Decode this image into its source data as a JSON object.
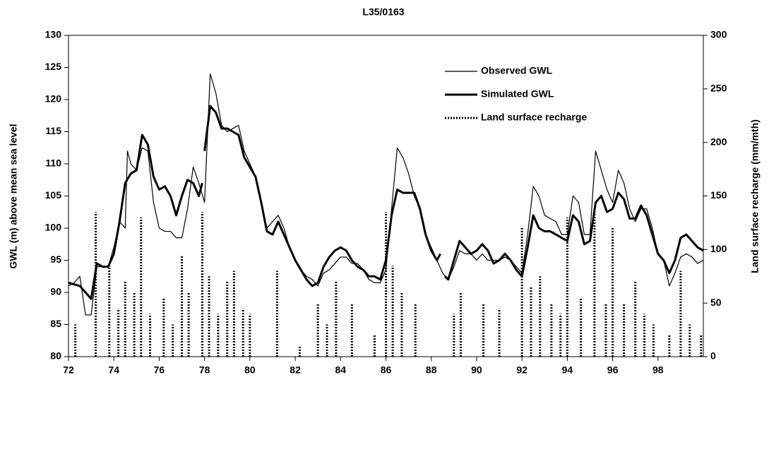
{
  "chart_data": {
    "type": "line",
    "title": "L35/0163",
    "y_label": "GWL (m) above mean sea level",
    "y2_label": "Land surface recharge (mm/mth)",
    "xlim": [
      72,
      100
    ],
    "xticks": [
      72,
      74,
      76,
      78,
      80,
      82,
      84,
      86,
      88,
      90,
      92,
      94,
      96,
      98
    ],
    "ylim": [
      80,
      130
    ],
    "yticks": [
      80,
      85,
      90,
      95,
      100,
      105,
      110,
      115,
      120,
      125,
      130
    ],
    "y2lim": [
      0,
      300
    ],
    "y2ticks": [
      0,
      50,
      100,
      150,
      200,
      250,
      300
    ],
    "legend": "upper right",
    "series": [
      {
        "name": "Observed GWL",
        "color": "#000000",
        "style": "thin",
        "x": [
          72.0,
          72.25,
          72.5,
          72.75,
          73.0,
          73.25,
          73.5,
          73.75,
          74.0,
          74.25,
          74.5,
          74.6,
          74.75,
          75.0,
          75.25,
          75.5,
          75.75,
          76.0,
          76.25,
          76.5,
          76.75,
          77.0,
          77.25,
          77.5,
          77.75,
          78.0,
          78.25,
          78.5,
          78.75,
          79.0,
          79.25,
          79.5,
          79.75,
          80.0,
          80.25,
          80.5,
          80.75,
          81.0,
          81.25,
          81.5,
          81.75,
          82.0,
          82.25,
          82.5,
          82.75,
          83.0,
          83.25,
          83.5,
          83.75,
          84.0,
          84.25,
          84.5,
          84.75,
          85.0,
          85.25,
          85.5,
          85.75,
          86.0,
          86.25,
          86.5,
          86.75,
          87.0,
          87.25,
          87.5,
          87.75,
          88.0,
          88.25,
          88.5,
          88.75,
          89.0,
          89.25,
          89.5,
          89.75,
          90.0,
          90.25,
          90.5,
          90.75,
          91.0,
          91.25,
          91.5,
          91.75,
          92.0,
          92.25,
          92.5,
          92.75,
          93.0,
          93.25,
          93.5,
          93.75,
          94.0,
          94.25,
          94.5,
          94.75,
          95.0,
          95.25,
          95.5,
          95.75,
          96.0,
          96.25,
          96.5,
          96.75,
          97.0,
          97.25,
          97.5,
          97.75,
          98.0,
          98.25,
          98.5,
          98.75,
          99.0,
          99.25,
          99.5,
          99.75,
          100
        ],
        "values": [
          91,
          91.5,
          92.5,
          86.5,
          86.5,
          94,
          94,
          94,
          97,
          101,
          100,
          112,
          110,
          109,
          112.5,
          112,
          104,
          100,
          99.5,
          99.5,
          98.5,
          98.5,
          103,
          109.5,
          107,
          104,
          124,
          121,
          116,
          115,
          115.5,
          116,
          112,
          110,
          108,
          104,
          100,
          101,
          102,
          100,
          97,
          95,
          93.5,
          92.5,
          92,
          91,
          93,
          93.5,
          94.5,
          95.5,
          95.5,
          94.5,
          94.5,
          93.5,
          92,
          91.5,
          91.5,
          93.5,
          103,
          112.5,
          111,
          108.5,
          105,
          103,
          99,
          97,
          95,
          93,
          92,
          94,
          96.5,
          96,
          96,
          95,
          96,
          95,
          95,
          95,
          95.5,
          95,
          94,
          93,
          99,
          106.5,
          105,
          102,
          101.5,
          101,
          99,
          99,
          105,
          104,
          99,
          99,
          112,
          109,
          106,
          104,
          109,
          107,
          103,
          101,
          103,
          103,
          100,
          96,
          95,
          91,
          93,
          95.5,
          96,
          95.5,
          94.5,
          95
        ]
      },
      {
        "name": "Simulated GWL",
        "color": "#000000",
        "style": "thick",
        "x": [
          72.0,
          72.5,
          73.0,
          73.25,
          73.5,
          73.75,
          74.0,
          74.25,
          74.5,
          74.75,
          75.0,
          75.25,
          75.5,
          75.75,
          76.0,
          76.25,
          76.5,
          76.75,
          77.0,
          77.25,
          77.5,
          77.75,
          77.9,
          77.95,
          78.0,
          78.25,
          78.5,
          78.75,
          79.0,
          79.25,
          79.5,
          79.75,
          80.0,
          80.25,
          80.5,
          80.75,
          81.0,
          81.25,
          81.5,
          81.75,
          82.0,
          82.25,
          82.5,
          82.75,
          83.0,
          83.25,
          83.5,
          83.75,
          84.0,
          84.25,
          84.5,
          84.75,
          85.0,
          85.25,
          85.5,
          85.75,
          86.0,
          86.25,
          86.5,
          86.75,
          87.0,
          87.25,
          87.5,
          87.75,
          88.0,
          88.25,
          88.4,
          88.5,
          88.6,
          88.75,
          89.0,
          89.25,
          89.5,
          89.75,
          90.0,
          90.25,
          90.5,
          90.75,
          91.0,
          91.25,
          91.5,
          91.75,
          92.0,
          92.25,
          92.5,
          92.75,
          93.0,
          93.25,
          93.5,
          93.75,
          94.0,
          94.25,
          94.5,
          94.75,
          95.0,
          95.25,
          95.5,
          95.75,
          96.0,
          96.25,
          96.5,
          96.75,
          97.0,
          97.25,
          97.5,
          97.75,
          98.0,
          98.25,
          98.5,
          98.75,
          99.0,
          99.25,
          99.5,
          99.75,
          100
        ],
        "values": [
          91.5,
          91,
          89,
          94.5,
          94,
          94,
          96,
          101,
          107,
          108.5,
          109,
          114.5,
          113,
          108,
          106,
          106.5,
          105,
          102,
          105,
          107.5,
          107,
          105,
          107,
          null,
          112,
          119,
          118,
          115.5,
          115.5,
          115,
          114.5,
          111,
          109.5,
          108,
          104,
          99.5,
          99,
          101,
          99,
          97,
          95,
          93.5,
          92,
          91,
          91.5,
          94,
          95.5,
          96.5,
          97,
          96.5,
          95,
          94,
          93.5,
          92.5,
          92.5,
          92,
          95,
          102,
          106,
          105.5,
          105.5,
          105.5,
          103,
          99,
          96.5,
          95,
          96,
          null,
          92.5,
          92,
          95,
          98,
          97,
          96,
          96.5,
          97.5,
          96.5,
          94.5,
          95,
          96,
          95,
          93.5,
          92.5,
          97,
          102,
          100,
          99.5,
          99.5,
          99,
          98.5,
          98,
          102,
          101,
          97.5,
          98,
          104,
          105,
          102.5,
          103,
          105.5,
          104.5,
          101.5,
          101.5,
          103.5,
          102,
          99,
          96,
          95,
          93,
          95,
          98.5,
          99,
          98,
          97,
          96.5
        ]
      },
      {
        "name": "Land surface recharge",
        "color": "#000000",
        "style": "dotted",
        "axis": "y2",
        "x": [
          72.3,
          73.2,
          73.8,
          74.2,
          74.5,
          74.9,
          75.2,
          75.6,
          76.2,
          76.6,
          77.0,
          77.3,
          77.9,
          78.2,
          78.6,
          79.0,
          79.3,
          79.7,
          80.0,
          81.2,
          82.2,
          83.0,
          83.4,
          83.8,
          84.5,
          85.5,
          86.0,
          86.3,
          86.7,
          87.3,
          89.0,
          89.3,
          90.3,
          91.0,
          92.0,
          92.4,
          92.8,
          93.3,
          93.7,
          94.0,
          94.6,
          95.2,
          95.7,
          96.0,
          96.5,
          97.0,
          97.4,
          97.8,
          98.5,
          99.0,
          99.4,
          99.9
        ],
        "values": [
          30,
          135,
          85,
          45,
          70,
          60,
          130,
          40,
          55,
          30,
          95,
          60,
          135,
          75,
          40,
          70,
          80,
          45,
          40,
          80,
          10,
          50,
          30,
          70,
          50,
          20,
          135,
          85,
          60,
          50,
          40,
          60,
          50,
          45,
          120,
          65,
          75,
          50,
          40,
          130,
          55,
          135,
          50,
          120,
          50,
          70,
          40,
          30,
          20,
          80,
          30,
          20
        ]
      }
    ]
  }
}
